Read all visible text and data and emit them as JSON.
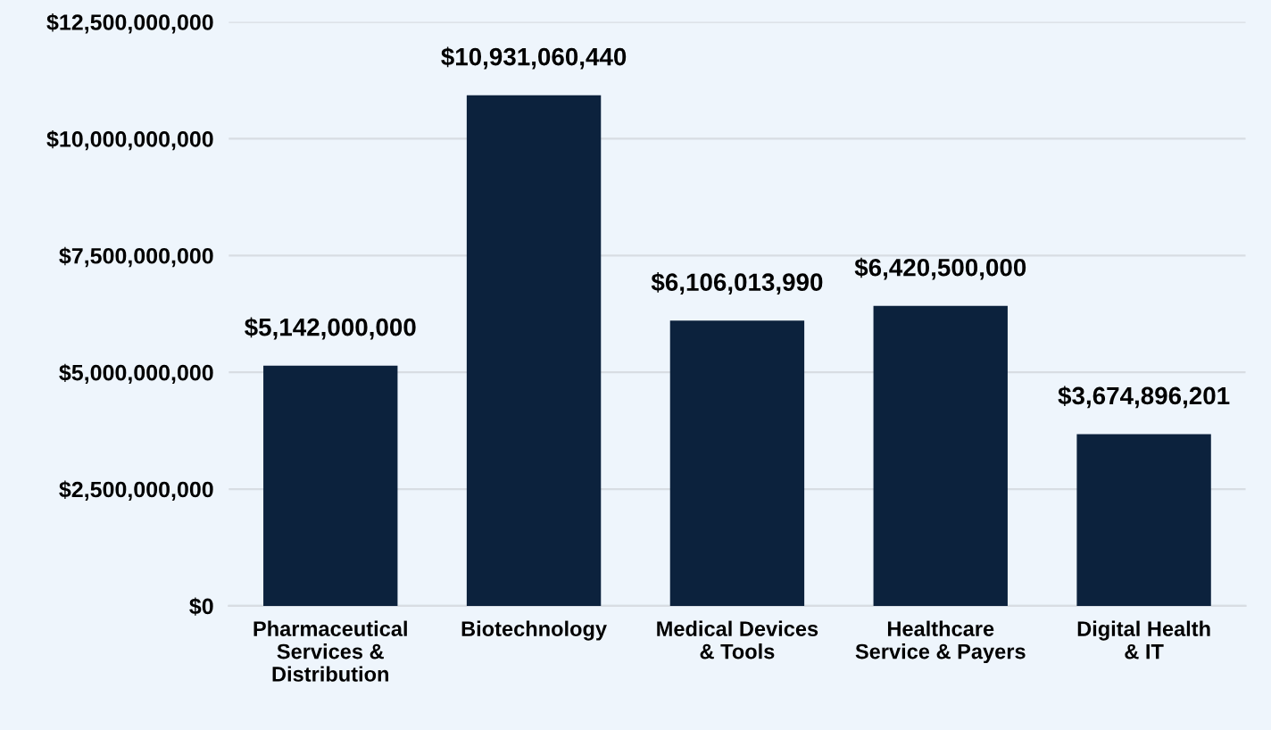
{
  "chart_data": {
    "type": "bar",
    "categories": [
      "Pharmaceutical\nServices &\nDistribution",
      "Biotechnology",
      "Medical Devices\n& Tools",
      "Healthcare\nService & Payers",
      "Digital Health\n& IT"
    ],
    "values": [
      5142000000,
      10931060440,
      6106013990,
      6420500000,
      3674896201
    ],
    "value_labels": [
      "$5,142,000,000",
      "$10,931,060,440",
      "$6,106,013,990",
      "$6,420,500,000",
      "$3,674,896,201"
    ],
    "color": "#0c223d",
    "ylim": [
      0,
      12500000000
    ],
    "yticks": [
      {
        "value": 0,
        "label": "$0"
      },
      {
        "value": 2500000000,
        "label": "$2,500,000,000"
      },
      {
        "value": 5000000000,
        "label": "$5,000,000,000"
      },
      {
        "value": 7500000000,
        "label": "$7,500,000,000"
      },
      {
        "value": 10000000000,
        "label": "$10,000,000,000"
      },
      {
        "value": 12500000000,
        "label": "$12,500,000,000"
      }
    ],
    "grid": "y",
    "legend": false
  }
}
